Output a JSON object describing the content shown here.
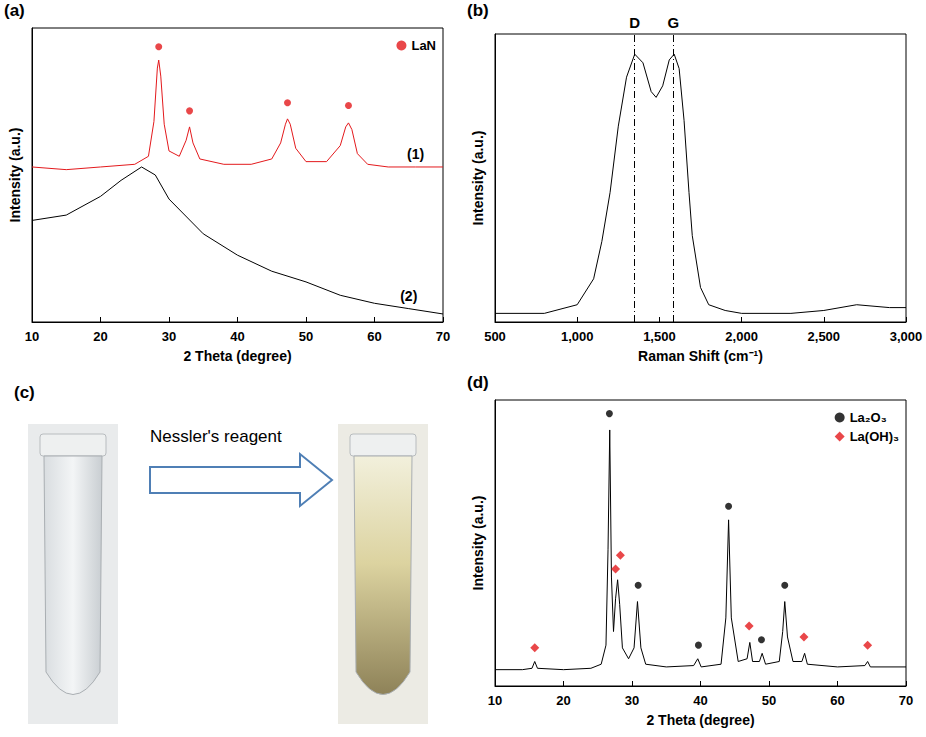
{
  "chart_data": [
    {
      "type": "line",
      "title": "(a)",
      "x_label": "2 Theta (degree)",
      "y_label": "Intensity (a.u.)",
      "xlim": [
        10,
        70
      ],
      "xticks": [
        10,
        20,
        30,
        40,
        50,
        60,
        70
      ],
      "ylim": [
        0,
        110
      ],
      "tick_labels": "x",
      "grid": false,
      "legend": "upper right",
      "series": [
        {
          "name": "(1)",
          "color": "#e3191c",
          "x": [
            10,
            15,
            20,
            25,
            27,
            27.8,
            28.3,
            28.5,
            28.8,
            29.3,
            30,
            31.5,
            32.5,
            33,
            33.5,
            34.5,
            38,
            42,
            45,
            46.3,
            47,
            47.3,
            47.7,
            48.5,
            50,
            53,
            55,
            55.8,
            56.2,
            56.7,
            57.5,
            59,
            62,
            66,
            70
          ],
          "values": [
            58,
            57,
            58,
            59,
            62,
            75,
            95,
            98,
            92,
            74,
            64,
            62,
            68,
            73,
            67,
            61,
            59,
            59,
            61,
            67,
            74,
            76,
            74,
            65,
            60,
            60,
            66,
            73,
            74.5,
            72,
            63,
            59,
            58,
            58,
            58
          ]
        },
        {
          "name": "(2)",
          "color": "#000000",
          "x": [
            10,
            15,
            20,
            23,
            26,
            28,
            30,
            35,
            40,
            45,
            50,
            55,
            60,
            65,
            70
          ],
          "values": [
            38,
            40,
            47,
            53,
            58,
            55,
            46,
            33,
            25,
            19,
            15,
            10,
            7,
            5,
            3
          ]
        }
      ],
      "markers": [
        {
          "name": "LaN",
          "color": "#e3191c",
          "marker": "circle",
          "x": [
            28.5,
            33,
            47.3,
            56.2
          ],
          "y": [
            103,
            79,
            82,
            81
          ]
        }
      ]
    },
    {
      "type": "line",
      "title": "(b)",
      "x_label": "Raman Shift (cm⁻¹)",
      "y_label": "Intensity (a.u.)",
      "xlim": [
        500,
        3000
      ],
      "xticks": [
        500,
        1000,
        1500,
        2000,
        2500,
        3000
      ],
      "ylim": [
        0,
        100
      ],
      "tick_labels": "x",
      "grid": false,
      "series": [
        {
          "color": "#000000",
          "x": [
            500,
            800,
            1000,
            1100,
            1150,
            1200,
            1250,
            1300,
            1350,
            1400,
            1450,
            1480,
            1520,
            1560,
            1590,
            1620,
            1650,
            1680,
            1700,
            1750,
            1800,
            1900,
            2000,
            2300,
            2500,
            2700,
            2900,
            3000
          ],
          "values": [
            3,
            3,
            6,
            15,
            28,
            45,
            68,
            85,
            93,
            90,
            80,
            78,
            82,
            91,
            93,
            88,
            70,
            45,
            30,
            12,
            6,
            4,
            3,
            3,
            4,
            6,
            5,
            5
          ]
        }
      ],
      "annotations": [
        {
          "text": "D",
          "x": 1350
        },
        {
          "text": "G",
          "x": 1585
        }
      ]
    },
    {
      "type": "line",
      "title": "(d)",
      "x_label": "2 Theta (degree)",
      "y_label": "Intensity (a.u.)",
      "xlim": [
        10,
        70
      ],
      "xticks": [
        10,
        20,
        30,
        40,
        50,
        60,
        70
      ],
      "ylim": [
        0,
        105
      ],
      "tick_labels": "x",
      "grid": false,
      "legend": "upper right",
      "series": [
        {
          "color": "#000000",
          "x": [
            10,
            14,
            15.4,
            15.8,
            16.2,
            20,
            24,
            25.5,
            26.2,
            26.5,
            26.75,
            27.0,
            27.3,
            27.6,
            27.9,
            28.2,
            28.6,
            29.5,
            30.3,
            30.8,
            31.3,
            32,
            35,
            39,
            39.6,
            40.1,
            43,
            43.7,
            44.1,
            44.5,
            45.5,
            46.8,
            47.2,
            47.6,
            48.6,
            49,
            49.5,
            51.5,
            52,
            52.3,
            52.7,
            53.5,
            54.8,
            55.2,
            55.6,
            60,
            64,
            64.4,
            64.8,
            70
          ],
          "values": [
            6,
            6,
            6.5,
            9,
            6.5,
            6,
            6.5,
            8,
            15,
            50,
            94,
            40,
            20,
            32,
            39,
            30,
            14,
            10,
            14,
            31,
            14,
            8,
            7,
            7.5,
            10,
            7,
            8,
            25,
            61,
            25,
            9,
            10,
            16,
            9,
            9,
            12,
            8,
            9,
            20,
            31,
            18,
            9,
            9,
            12,
            8,
            7,
            7.5,
            9,
            7,
            7
          ]
        }
      ],
      "markers": [
        {
          "name": "La₂O₃",
          "color": "#000000",
          "marker": "circle",
          "x": [
            26.7,
            30.9,
            39.7,
            44.1,
            48.9,
            52.3
          ],
          "y": [
            100,
            37,
            15,
            66,
            17,
            37
          ]
        },
        {
          "name": "La(OH)₃",
          "color": "#e3191c",
          "marker": "diamond",
          "x": [
            15.8,
            27.6,
            28.3,
            47.1,
            55.1,
            64.4
          ],
          "y": [
            14,
            43,
            48,
            22,
            18,
            15
          ]
        }
      ]
    }
  ],
  "panel_c": {
    "label": "(c)",
    "arrow_text": "Nessler's reagent"
  }
}
